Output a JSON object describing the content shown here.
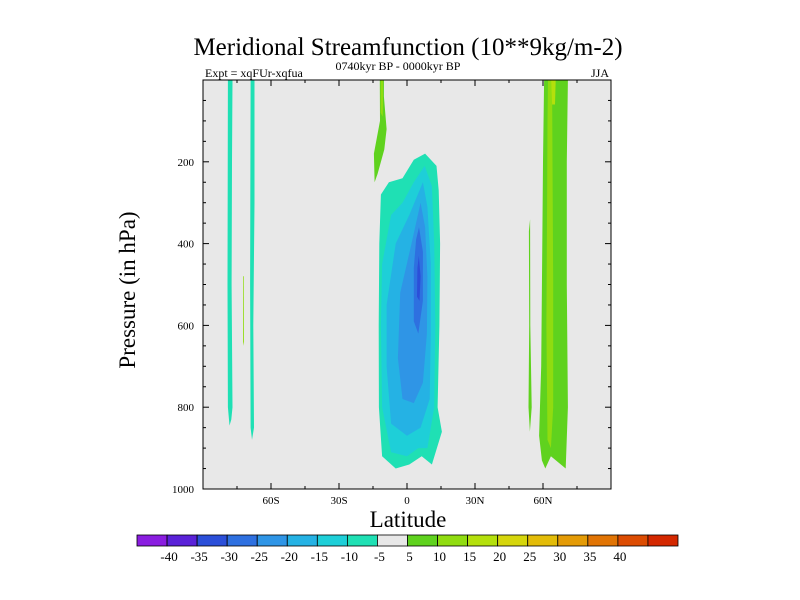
{
  "chart_data": {
    "type": "contour",
    "title": "Meridional Streamfunction (10**9kg/m-2)",
    "left_string": "Expt = xqFUr-xqfua",
    "center_string": "0740kyr BP - 0000kyr BP",
    "right_string": "JJA",
    "xlabel": "Latitude",
    "ylabel": "Pressure (in hPa)",
    "xlim": [
      -90,
      90
    ],
    "ylim": [
      1000,
      0
    ],
    "background_color": "#e8e8e8",
    "x_ticks": [
      {
        "value": -60,
        "label": "60S"
      },
      {
        "value": -30,
        "label": "30S"
      },
      {
        "value": 0,
        "label": "0"
      },
      {
        "value": 30,
        "label": "30N"
      },
      {
        "value": 60,
        "label": "60N"
      }
    ],
    "y_ticks": [
      {
        "value": 200,
        "label": "200"
      },
      {
        "value": 400,
        "label": "400"
      },
      {
        "value": 600,
        "label": "600"
      },
      {
        "value": 800,
        "label": "800"
      },
      {
        "value": 1000,
        "label": "1000"
      }
    ],
    "colorbar": {
      "colors": [
        "#8a1de0",
        "#5a22d8",
        "#2b4fd9",
        "#2e70e0",
        "#2f95e6",
        "#25b2e4",
        "#1ecfd8",
        "#1fe0b4",
        "#e8e8e8",
        "#5fd21e",
        "#90dc10",
        "#b4e00c",
        "#d6d60c",
        "#e3bc08",
        "#e49b06",
        "#e17404",
        "#dc4c02",
        "#d42800"
      ],
      "labels": [
        "-40",
        "-35",
        "-30",
        "-25",
        "-20",
        "-15",
        "-10",
        "-5",
        "5",
        "10",
        "15",
        "20",
        "25",
        "30",
        "35",
        "40"
      ]
    },
    "regions": [
      {
        "name": "band-80s",
        "color": "#1fe0b4",
        "pts": [
          [
            -79,
            0
          ],
          [
            -77,
            0
          ],
          [
            -77.2,
            200
          ],
          [
            -77.4,
            500
          ],
          [
            -77,
            800
          ],
          [
            -77.5,
            830
          ],
          [
            -78.3,
            845
          ],
          [
            -79,
            800
          ],
          [
            -79.2,
            500
          ]
        ]
      },
      {
        "name": "band-70s",
        "color": "#1fe0b4",
        "pts": [
          [
            -69,
            0
          ],
          [
            -67.3,
            0
          ],
          [
            -67.3,
            300
          ],
          [
            -67.8,
            600
          ],
          [
            -67.5,
            850
          ],
          [
            -68.4,
            880
          ],
          [
            -69,
            850
          ],
          [
            -69.2,
            500
          ]
        ]
      },
      {
        "name": "speck-73s",
        "color": "#90dc10",
        "pts": [
          [
            -72.3,
            480
          ],
          [
            -72,
            480
          ],
          [
            -71.9,
            640
          ],
          [
            -72.3,
            650
          ]
        ]
      },
      {
        "name": "spike-12s-outer",
        "color": "#5fd21e",
        "pts": [
          [
            -12,
            0
          ],
          [
            -10.2,
            0
          ],
          [
            -10.2,
            40
          ],
          [
            -9,
            120
          ],
          [
            -10,
            170
          ],
          [
            -13,
            230
          ],
          [
            -14.3,
            250
          ],
          [
            -14.6,
            180
          ],
          [
            -11.9,
            100
          ]
        ]
      },
      {
        "name": "spike-12s-inner",
        "color": "#90dc10",
        "pts": [
          [
            -11.6,
            0
          ],
          [
            -10.6,
            0
          ],
          [
            -10.6,
            60
          ],
          [
            -10.7,
            90
          ],
          [
            -11.6,
            80
          ]
        ]
      },
      {
        "name": "cell-5",
        "color": "#1fe0b4",
        "pts": [
          [
            8,
            180
          ],
          [
            13,
            210
          ],
          [
            14,
            270
          ],
          [
            14.6,
            400
          ],
          [
            14.3,
            600
          ],
          [
            13.5,
            800
          ],
          [
            15.4,
            860
          ],
          [
            11,
            940
          ],
          [
            6.5,
            920
          ],
          [
            1,
            940
          ],
          [
            -5,
            950
          ],
          [
            -11,
            920
          ],
          [
            -12.4,
            800
          ],
          [
            -12.5,
            600
          ],
          [
            -12.2,
            400
          ],
          [
            -11.5,
            280
          ],
          [
            -8,
            250
          ],
          [
            -2,
            240
          ],
          [
            3,
            195
          ]
        ]
      },
      {
        "name": "cell-10",
        "color": "#1ecfd8",
        "pts": [
          [
            7.8,
            210
          ],
          [
            11,
            260
          ],
          [
            12,
            400
          ],
          [
            12.5,
            600
          ],
          [
            12,
            800
          ],
          [
            9,
            900
          ],
          [
            5,
            900
          ],
          [
            0,
            920
          ],
          [
            -7,
            910
          ],
          [
            -11,
            800
          ],
          [
            -11.5,
            600
          ],
          [
            -11,
            450
          ],
          [
            -7,
            330
          ],
          [
            -2,
            300
          ],
          [
            3,
            250
          ]
        ]
      },
      {
        "name": "cell-15",
        "color": "#25b2e4",
        "pts": [
          [
            7,
            250
          ],
          [
            9,
            310
          ],
          [
            10.5,
            450
          ],
          [
            10.5,
            620
          ],
          [
            10,
            780
          ],
          [
            6,
            850
          ],
          [
            0,
            870
          ],
          [
            -7,
            840
          ],
          [
            -9,
            700
          ],
          [
            -9,
            550
          ],
          [
            -5,
            400
          ],
          [
            1,
            330
          ]
        ]
      },
      {
        "name": "cell-20",
        "color": "#2f95e6",
        "pts": [
          [
            6,
            300
          ],
          [
            8,
            360
          ],
          [
            9,
            480
          ],
          [
            8.8,
            620
          ],
          [
            7,
            740
          ],
          [
            3,
            790
          ],
          [
            -2,
            780
          ],
          [
            -4,
            680
          ],
          [
            -3,
            520
          ],
          [
            2,
            400
          ]
        ]
      },
      {
        "name": "cell-25",
        "color": "#2e70e0",
        "pts": [
          [
            5.3,
            360
          ],
          [
            7,
            420
          ],
          [
            7,
            540
          ],
          [
            5,
            620
          ],
          [
            3,
            590
          ],
          [
            3,
            460
          ],
          [
            4,
            390
          ]
        ]
      },
      {
        "name": "cell-30",
        "color": "#2b4fd9",
        "pts": [
          [
            5.2,
            430
          ],
          [
            6,
            480
          ],
          [
            5.5,
            540
          ],
          [
            4.4,
            530
          ],
          [
            4.6,
            460
          ]
        ]
      },
      {
        "name": "band-60n-outer",
        "color": "#5fd21e",
        "pts": [
          [
            60.5,
            0
          ],
          [
            71,
            0
          ],
          [
            70.5,
            200
          ],
          [
            70.5,
            500
          ],
          [
            71,
            800
          ],
          [
            70,
            950
          ],
          [
            63.5,
            920
          ],
          [
            61,
            950
          ],
          [
            59.5,
            930
          ],
          [
            58.3,
            870
          ],
          [
            59.2,
            700
          ],
          [
            59.7,
            400
          ],
          [
            60,
            200
          ]
        ]
      },
      {
        "name": "band-60n-inner",
        "color": "#90dc10",
        "pts": [
          [
            62.2,
            0
          ],
          [
            64,
            0
          ],
          [
            64.2,
            200
          ],
          [
            64.5,
            500
          ],
          [
            64.5,
            800
          ],
          [
            63.5,
            900
          ],
          [
            62,
            880
          ],
          [
            61.5,
            600
          ],
          [
            61.8,
            300
          ],
          [
            62,
            100
          ]
        ]
      },
      {
        "name": "band-60n-tip",
        "color": "#b4e00c",
        "pts": [
          [
            63.6,
            0
          ],
          [
            65.6,
            0
          ],
          [
            65.3,
            60
          ],
          [
            64,
            60
          ]
        ]
      },
      {
        "name": "spike-53n",
        "color": "#5fd21e",
        "pts": [
          [
            53.8,
            370
          ],
          [
            54.3,
            340
          ],
          [
            54.4,
            600
          ],
          [
            55,
            800
          ],
          [
            54.2,
            860
          ],
          [
            53.6,
            800
          ],
          [
            53.9,
            600
          ]
        ]
      }
    ]
  }
}
